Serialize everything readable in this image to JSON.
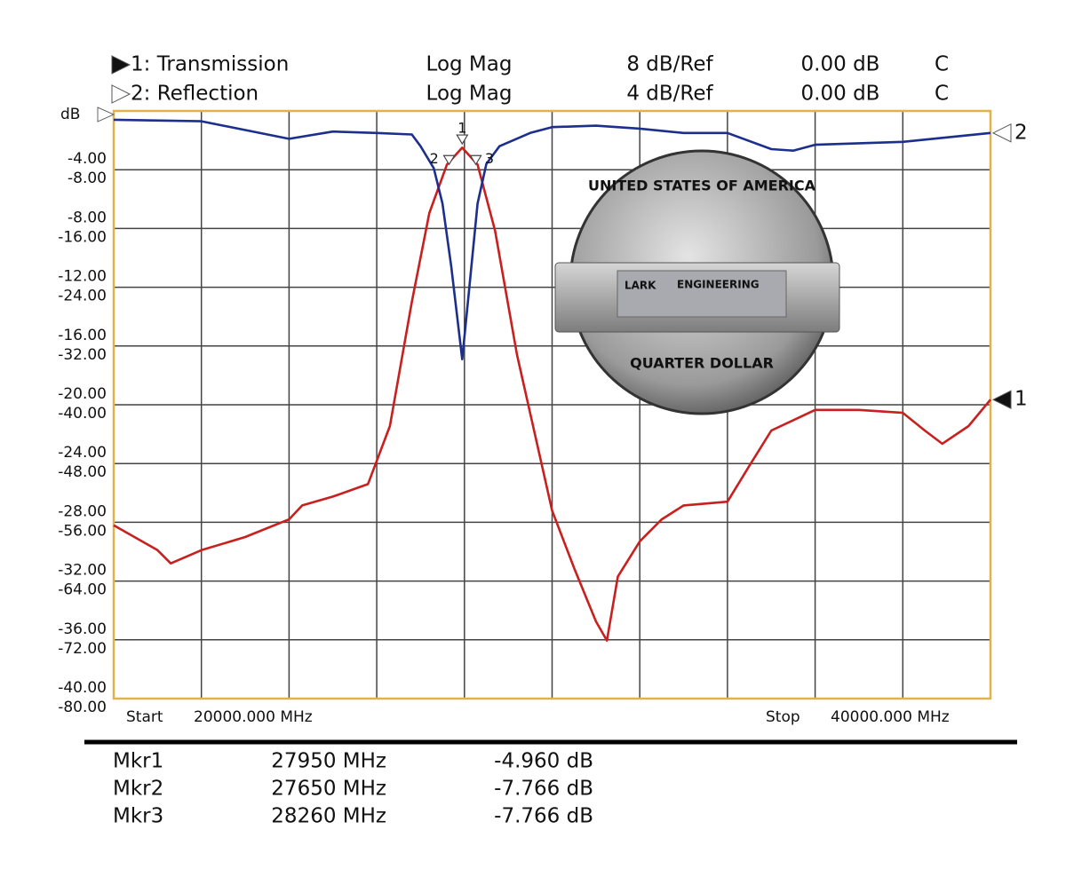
{
  "chart_data": {
    "type": "line",
    "y_unit": "dB",
    "start_text": "Start",
    "stop_text": "Stop",
    "xlim": [
      20000,
      40000
    ],
    "x_start_label": "20000.000 MHz",
    "x_stop_label": "40000.000 MHz",
    "ylim": [
      -40,
      0
    ],
    "yticks": [
      {
        "value": -4,
        "label": "-4.00"
      },
      {
        "value": -8,
        "label": "-8.00"
      },
      {
        "value": -12,
        "label": "-12.00"
      },
      {
        "value": -16,
        "label": "-16.00"
      },
      {
        "value": -20,
        "label": "-20.00"
      },
      {
        "value": -24,
        "label": "-24.00"
      },
      {
        "value": -28,
        "label": "-28.00"
      },
      {
        "value": -32,
        "label": "-32.00"
      },
      {
        "value": -36,
        "label": "-36.00"
      },
      {
        "value": -40,
        "label": "-40.00"
      }
    ],
    "y2lim": [
      -80,
      0
    ],
    "y2ticks": [
      {
        "value": -8,
        "label": "-8.00"
      },
      {
        "value": -16,
        "label": "-16.00"
      },
      {
        "value": -24,
        "label": "-24.00"
      },
      {
        "value": -32,
        "label": "-32.00"
      },
      {
        "value": -40,
        "label": "-40.00"
      },
      {
        "value": -48,
        "label": "-48.00"
      },
      {
        "value": -56,
        "label": "-56.00"
      },
      {
        "value": -64,
        "label": "-64.00"
      },
      {
        "value": -72,
        "label": "-72.00"
      },
      {
        "value": -80,
        "label": "-80.00"
      }
    ],
    "grid": true,
    "series": [
      {
        "name": "1: Transmission",
        "trace": "1",
        "format": "Log Mag",
        "scale": "8 dB/Ref",
        "reference": "0.00 dB",
        "flag": "C",
        "color": "#c8201e",
        "axis": "y2",
        "x": [
          20000,
          21000,
          21300,
          22000,
          23000,
          24000,
          24300,
          25000,
          25800,
          26300,
          26800,
          27200,
          27600,
          27950,
          28300,
          28700,
          29200,
          30000,
          30500,
          31000,
          31250,
          31500,
          32000,
          32500,
          33000,
          34000,
          34500,
          35000,
          36000,
          37000,
          38000,
          38500,
          38900,
          39500,
          40000
        ],
        "values": [
          -56.4,
          -59.8,
          -61.6,
          -59.8,
          -58.0,
          -55.6,
          -53.7,
          -52.5,
          -50.8,
          -42.9,
          -26.0,
          -13.9,
          -7.3,
          -5.0,
          -7.3,
          -16.3,
          -33.2,
          -54.4,
          -62.2,
          -69.5,
          -72.1,
          -63.4,
          -58.6,
          -55.6,
          -53.7,
          -53.2,
          -48.3,
          -43.5,
          -40.7,
          -40.7,
          -41.1,
          -43.5,
          -45.3,
          -42.9,
          -39.3
        ]
      },
      {
        "name": "2: Reflection",
        "trace": "2",
        "format": "Log Mag",
        "scale": "4 dB/Ref",
        "reference": "0.00 dB",
        "flag": "C",
        "color": "#1c2f8c",
        "axis": "y",
        "x": [
          20000,
          22000,
          24000,
          25000,
          26000,
          26800,
          27000,
          27300,
          27500,
          27700,
          27950,
          28100,
          28300,
          28500,
          28800,
          29500,
          30000,
          31000,
          32000,
          33000,
          34000,
          35000,
          35500,
          36000,
          37000,
          38000,
          39000,
          40000
        ],
        "values": [
          -0.6,
          -0.7,
          -1.9,
          -1.4,
          -1.5,
          -1.6,
          -2.4,
          -3.9,
          -6.3,
          -10.6,
          -16.9,
          -12.4,
          -6.3,
          -3.6,
          -2.4,
          -1.5,
          -1.1,
          -1.0,
          -1.2,
          -1.5,
          -1.5,
          -2.6,
          -2.7,
          -2.3,
          -2.2,
          -2.1,
          -1.8,
          -1.5
        ]
      }
    ],
    "markers": [
      {
        "id": "1",
        "name": "Mkr1",
        "x": 27950,
        "x_label": "27950 MHz",
        "value": -4.96,
        "value_label": "-4.960 dB"
      },
      {
        "id": "2",
        "name": "Mkr2",
        "x": 27650,
        "x_label": "27650 MHz",
        "value": -7.766,
        "value_label": "-7.766 dB"
      },
      {
        "id": "3",
        "name": "Mkr3",
        "x": 28260,
        "x_label": "28260 MHz",
        "value": -7.766,
        "value_label": "-7.766 dB"
      }
    ],
    "inset_text": [
      "LARK",
      "ENGINEERING"
    ],
    "coin_text": [
      "UNITED STATES OF AMERICA",
      "QUARTER DOLLAR"
    ]
  }
}
